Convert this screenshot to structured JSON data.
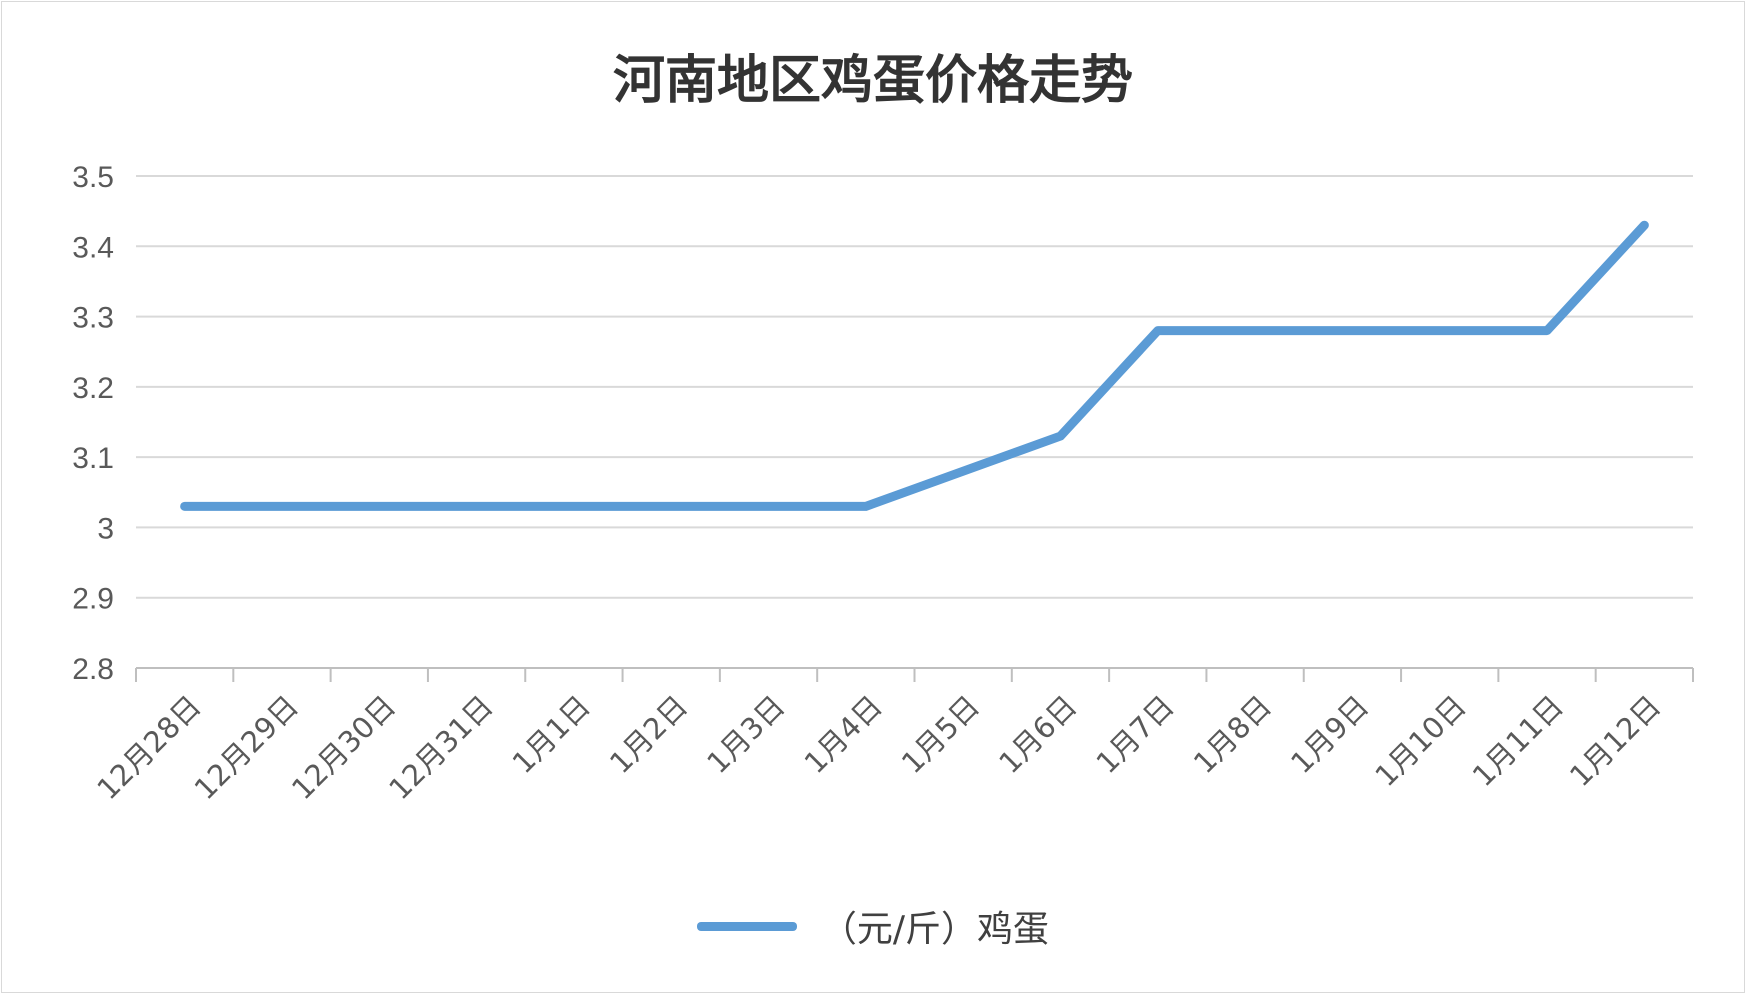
{
  "chart_data": {
    "type": "line",
    "title": "河南地区鸡蛋价格走势",
    "categories": [
      "12月28日",
      "12月29日",
      "12月30日",
      "12月31日",
      "1月1日",
      "1月2日",
      "1月3日",
      "1月4日",
      "1月5日",
      "1月6日",
      "1月7日",
      "1月8日",
      "1月9日",
      "1月10日",
      "1月11日",
      "1月12日"
    ],
    "series": [
      {
        "name": "（元/斤）鸡蛋",
        "values": [
          3.03,
          3.03,
          3.03,
          3.03,
          3.03,
          3.03,
          3.03,
          3.03,
          3.08,
          3.13,
          3.28,
          3.28,
          3.28,
          3.28,
          3.28,
          3.43
        ],
        "color": "#5b9bd5"
      }
    ],
    "ylim": [
      2.8,
      3.5
    ],
    "yticks": [
      "2.8",
      "2.9",
      "3",
      "3.1",
      "3.2",
      "3.3",
      "3.4",
      "3.5"
    ],
    "grid": true,
    "legend": "bottom"
  }
}
